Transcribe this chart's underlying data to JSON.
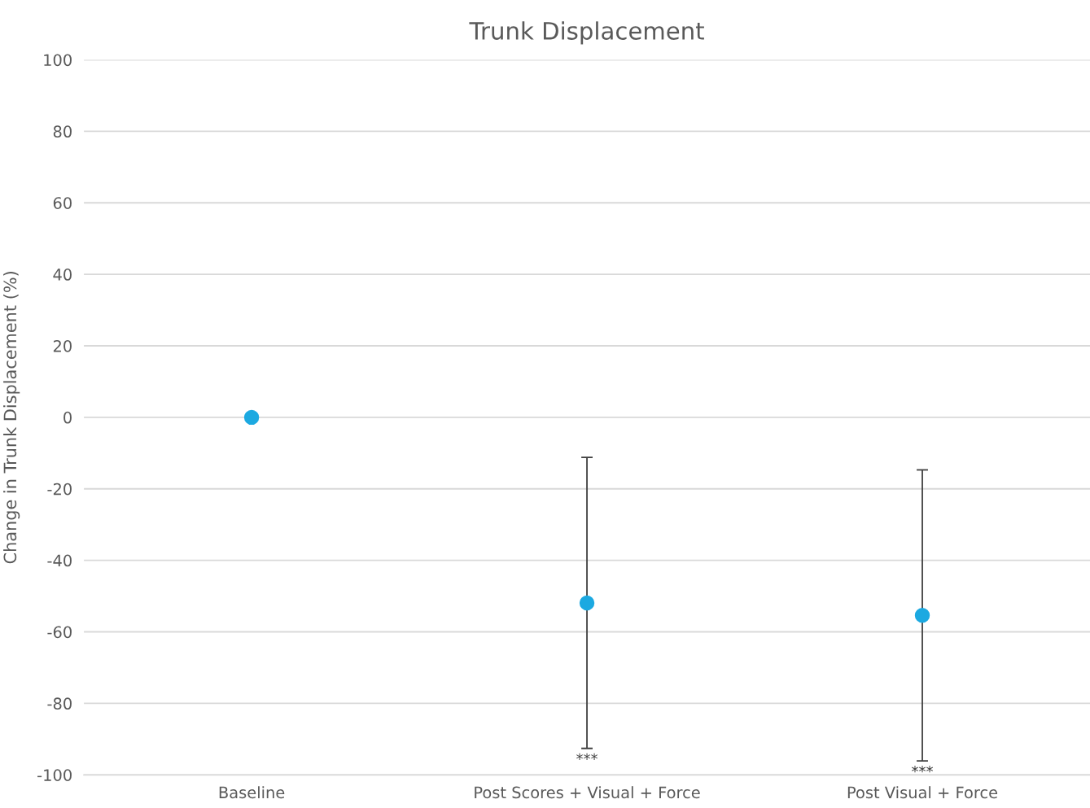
{
  "chart_data": {
    "type": "scatter",
    "title": "Trunk Displacement",
    "ylabel": "Change in Trunk Displacement (%)",
    "categories": [
      "Baseline",
      "Post Scores + Visual + Force",
      "Post Visual + Force"
    ],
    "series": [
      {
        "color": "#1ca9e1",
        "values": [
          0,
          -51.9,
          -55.4
        ],
        "errors": [
          null,
          40.7,
          40.7
        ]
      }
    ],
    "ylim": [
      -100,
      100
    ],
    "yticks": [
      -100,
      -80,
      -60,
      -40,
      -20,
      0,
      20,
      40,
      60,
      80,
      100
    ],
    "grid": "y",
    "marker": "circle",
    "annotations": [
      "***",
      "***"
    ]
  }
}
